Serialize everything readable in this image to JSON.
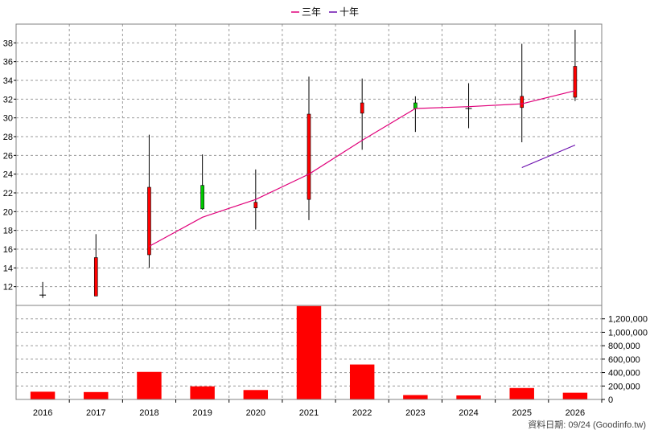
{
  "chart_data": {
    "type": "candlestick",
    "categories": [
      "2016",
      "2017",
      "2018",
      "2019",
      "2020",
      "2021",
      "2022",
      "2023",
      "2024",
      "2025",
      "2026"
    ],
    "price": {
      "ylim": [
        10,
        40
      ],
      "yticks": [
        12,
        14,
        16,
        18,
        20,
        22,
        24,
        26,
        28,
        30,
        32,
        34,
        36,
        38
      ],
      "candles": [
        {
          "open": 11.1,
          "close": 11.1,
          "high": 12.5,
          "low": 10.8
        },
        {
          "open": 15.1,
          "close": 11.0,
          "high": 17.6,
          "low": 11.0
        },
        {
          "open": 22.6,
          "close": 15.4,
          "high": 28.2,
          "low": 14.0
        },
        {
          "open": 20.3,
          "close": 22.8,
          "high": 26.1,
          "low": 20.2
        },
        {
          "open": 21.0,
          "close": 20.4,
          "high": 24.5,
          "low": 18.1
        },
        {
          "open": 30.4,
          "close": 21.3,
          "high": 34.4,
          "low": 19.1
        },
        {
          "open": 31.6,
          "close": 30.5,
          "high": 34.2,
          "low": 26.6
        },
        {
          "open": 31.0,
          "close": 31.6,
          "high": 32.3,
          "low": 28.5
        },
        {
          "open": 31.0,
          "close": 31.0,
          "high": 33.7,
          "low": 28.9
        },
        {
          "open": 32.3,
          "close": 31.1,
          "high": 37.9,
          "low": 27.4
        },
        {
          "open": 35.5,
          "close": 32.2,
          "high": 39.4,
          "low": 31.8
        }
      ],
      "series": [
        {
          "name": "三年",
          "color": "#e0007a",
          "values": [
            null,
            null,
            16.3,
            19.4,
            21.3,
            24.0,
            27.6,
            31.0,
            31.2,
            31.5,
            32.9
          ]
        },
        {
          "name": "十年",
          "color": "#6a0dad",
          "values": [
            null,
            null,
            null,
            null,
            null,
            null,
            null,
            null,
            null,
            24.7,
            27.1
          ]
        }
      ]
    },
    "volume": {
      "ylim": [
        0,
        1400000
      ],
      "yticks": [
        0,
        200000,
        400000,
        600000,
        800000,
        1000000,
        1200000
      ],
      "ytick_labels": [
        "0",
        "200,000",
        "400,000",
        "600,000",
        "800,000",
        "1,000,000",
        "1,200,000"
      ],
      "values": [
        115000,
        110000,
        410000,
        195000,
        140000,
        1390000,
        520000,
        65000,
        60000,
        170000,
        100000
      ]
    },
    "colors": {
      "up": "#00c800",
      "down": "#ff0000",
      "wick": "#000000",
      "grid": "#9a9a9a",
      "volume": "#ff0000"
    },
    "grid": true,
    "legend_position": "top-center"
  },
  "footer": {
    "source_text": "資料日期: 09/24  (Goodinfo.tw)"
  }
}
